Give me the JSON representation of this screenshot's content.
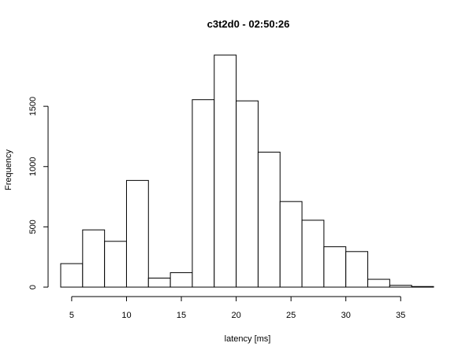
{
  "chart_data": {
    "type": "bar",
    "title": "c3t2d0 - 02:50:26",
    "xlabel": "latency [ms]",
    "ylabel": "Frequency",
    "bin_edges": [
      4,
      6,
      8,
      10,
      12,
      14,
      16,
      18,
      20,
      22,
      24,
      26,
      28,
      30,
      32,
      34,
      36,
      38
    ],
    "values": [
      195,
      475,
      380,
      885,
      75,
      120,
      1555,
      1925,
      1545,
      1120,
      710,
      555,
      335,
      295,
      65,
      15,
      5
    ],
    "xlim": [
      4,
      38
    ],
    "ylim": [
      0,
      1925
    ],
    "x_ticks": [
      5,
      10,
      15,
      20,
      25,
      30,
      35
    ],
    "y_ticks": [
      0,
      500,
      1000,
      1500
    ],
    "grid": false,
    "bar_fill": "#ffffff",
    "bar_stroke": "#000000"
  }
}
